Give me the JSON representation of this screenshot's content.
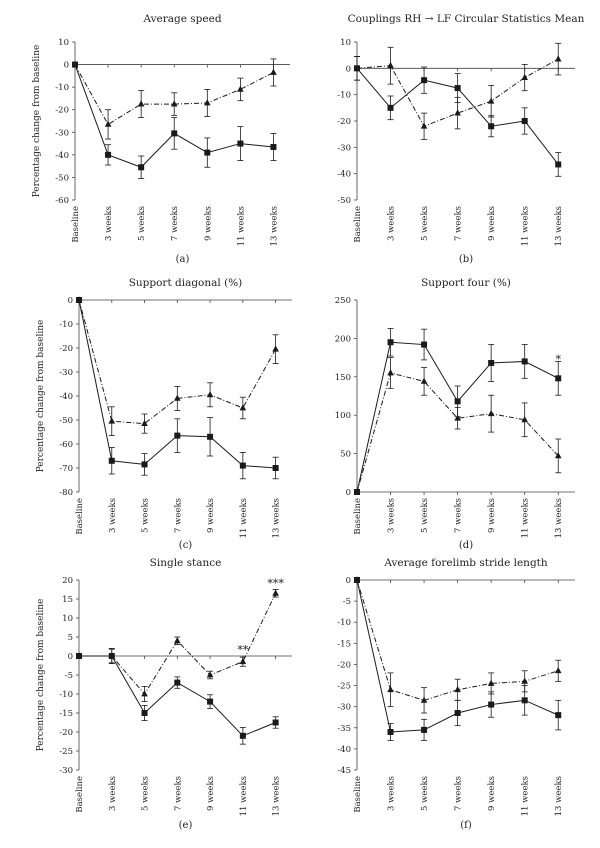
{
  "chart_data": [
    {
      "type": "line",
      "title": "Average speed",
      "panel_label": "(a)",
      "ylabel": "Percentage change from baseline",
      "xlabel": "",
      "categories": [
        "Baseline",
        "3 weeks",
        "5 weeks",
        "7 weeks",
        "9 weeks",
        "11 weeks",
        "13 weeks"
      ],
      "ylim": [
        -60,
        10
      ],
      "yticks": [
        10,
        0,
        -10,
        -20,
        -30,
        -40,
        -50,
        -60
      ],
      "series": [
        {
          "style": "solid",
          "marker": "square",
          "values": [
            0,
            -40,
            -45.5,
            -30.5,
            -39,
            -35,
            -36.5
          ],
          "errors": [
            0,
            4.5,
            5,
            7,
            6.5,
            7.5,
            6
          ]
        },
        {
          "style": "dashdot",
          "marker": "triangle",
          "values": [
            0,
            -26.5,
            -17.5,
            -17.5,
            -17,
            -11,
            -3.5
          ],
          "errors": [
            0,
            6.5,
            6,
            5,
            6,
            5,
            6
          ]
        }
      ],
      "annotations": []
    },
    {
      "type": "line",
      "title": "Couplings RH → LF Circular Statistics Mean",
      "panel_label": "(b)",
      "ylabel": "",
      "xlabel": "",
      "categories": [
        "Baseline",
        "3 weeks",
        "5 weeks",
        "7 weeks",
        "9 weeks",
        "11 weeks",
        "13 weeks"
      ],
      "ylim": [
        -50,
        10
      ],
      "yticks": [
        10,
        0,
        -10,
        -20,
        -30,
        -40,
        -50
      ],
      "series": [
        {
          "style": "solid",
          "marker": "square",
          "values": [
            0,
            -15,
            -4.5,
            -7.5,
            -22,
            -20,
            -36.5
          ],
          "errors": [
            4.5,
            4.5,
            5,
            5.5,
            4,
            5,
            4.5
          ]
        },
        {
          "style": "dashdot",
          "marker": "triangle",
          "values": [
            0,
            1,
            -22,
            -17,
            -12.5,
            -3.5,
            3.5
          ],
          "errors": [
            4.5,
            7,
            5,
            6,
            6,
            5,
            6
          ]
        }
      ],
      "annotations": []
    },
    {
      "type": "line",
      "title": "Support diagonal (%)",
      "panel_label": "(c)",
      "ylabel": "Percentage change from baseline",
      "xlabel": "",
      "categories": [
        "Baseline",
        "3 weeks",
        "5 weeks",
        "7 weeks",
        "9 weeks",
        "11 weeks",
        "13 weeks"
      ],
      "ylim": [
        -80,
        0
      ],
      "yticks": [
        0,
        -10,
        -20,
        -30,
        -40,
        -50,
        -60,
        -70,
        -80
      ],
      "series": [
        {
          "style": "solid",
          "marker": "square",
          "values": [
            0,
            -67,
            -68.5,
            -56.5,
            -57,
            -69,
            -70
          ],
          "errors": [
            0,
            5.5,
            4.5,
            7,
            8,
            5.5,
            4.5
          ]
        },
        {
          "style": "dashdot",
          "marker": "triangle",
          "values": [
            0,
            -50.5,
            -51.5,
            -41,
            -39.5,
            -45,
            -20.5
          ],
          "errors": [
            0,
            6,
            4,
            5,
            5,
            4.5,
            6
          ]
        }
      ],
      "annotations": []
    },
    {
      "type": "line",
      "title": "Support four (%)",
      "panel_label": "(d)",
      "ylabel": "",
      "xlabel": "",
      "categories": [
        "Baseline",
        "3 weeks",
        "5 weeks",
        "7 weeks",
        "9 weeks",
        "11 weeks",
        "13 weeks"
      ],
      "ylim": [
        0,
        250
      ],
      "yticks": [
        250,
        200,
        150,
        100,
        50,
        0
      ],
      "series": [
        {
          "style": "solid",
          "marker": "square",
          "values": [
            0,
            195,
            192,
            118,
            168,
            170,
            148
          ],
          "errors": [
            0,
            18,
            20,
            20,
            24,
            22,
            22
          ]
        },
        {
          "style": "dashdot",
          "marker": "triangle",
          "values": [
            0,
            155,
            144,
            96,
            102,
            94,
            47
          ],
          "errors": [
            0,
            20,
            18,
            14,
            24,
            22,
            22
          ]
        }
      ],
      "annotations": [
        {
          "text": "*",
          "category": "13 weeks",
          "y": 172
        }
      ]
    },
    {
      "type": "line",
      "title": "Single stance",
      "panel_label": "(e)",
      "ylabel": "Percentage change from baseline",
      "xlabel": "",
      "categories": [
        "Baseline",
        "3 weeks",
        "5 weeks",
        "7 weeks",
        "9 weeks",
        "11 weeks",
        "13 weeks"
      ],
      "ylim": [
        -30,
        20
      ],
      "yticks": [
        20,
        15,
        10,
        5,
        0,
        -5,
        -10,
        -15,
        -20,
        -25,
        -30
      ],
      "series": [
        {
          "style": "solid",
          "marker": "square",
          "values": [
            0,
            0,
            -15,
            -7,
            -12,
            -21,
            -17.5
          ],
          "errors": [
            0,
            2,
            2,
            1.5,
            1.8,
            2.2,
            1.5
          ]
        },
        {
          "style": "dashdot",
          "marker": "triangle",
          "values": [
            0,
            0,
            -10,
            4,
            -5,
            -1.5,
            16.5
          ],
          "errors": [
            0,
            1.8,
            2,
            1,
            1,
            1.2,
            1
          ]
        }
      ],
      "annotations": [
        {
          "text": "**",
          "category": "11 weeks",
          "y": 1.5
        },
        {
          "text": "***",
          "category": "13 weeks",
          "y": 19
        }
      ]
    },
    {
      "type": "line",
      "title": "Average forelimb stride length",
      "panel_label": "(f)",
      "ylabel": "",
      "xlabel": "",
      "categories": [
        "Baseline",
        "3 weeks",
        "5 weeks",
        "7 weeks",
        "9 weeks",
        "11 weeks",
        "13 weeks"
      ],
      "ylim": [
        -45,
        0
      ],
      "yticks": [
        0,
        -5,
        -10,
        -15,
        -20,
        -25,
        -30,
        -35,
        -40,
        -45
      ],
      "series": [
        {
          "style": "solid",
          "marker": "square",
          "values": [
            0,
            -36,
            -35.5,
            -31.5,
            -29.5,
            -28.5,
            -32
          ],
          "errors": [
            0,
            2,
            2.5,
            3,
            3,
            3.5,
            3.5
          ]
        },
        {
          "style": "dashdot",
          "marker": "triangle",
          "values": [
            0,
            -26,
            -28.5,
            -26,
            -24.5,
            -24,
            -21.5
          ],
          "errors": [
            0,
            4,
            3,
            2.5,
            2.5,
            2.5,
            2.5
          ]
        }
      ],
      "annotations": []
    }
  ]
}
